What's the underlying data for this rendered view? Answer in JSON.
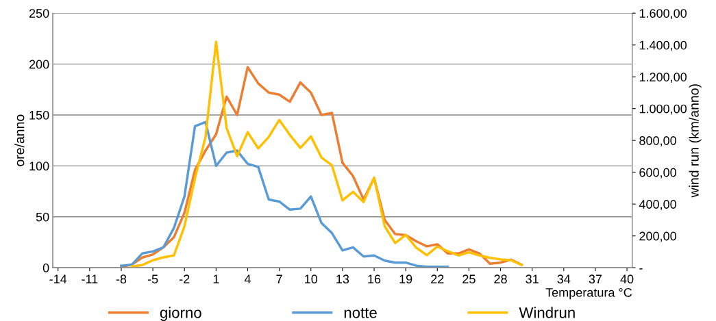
{
  "chart_data": {
    "type": "line",
    "xlabel": "Temperatura °C",
    "ylabel": "ore/anno",
    "y2label": "wind run (km/anno)",
    "xlim": [
      -14.5,
      40.5
    ],
    "xticks": [
      -14,
      -11,
      -8,
      -5,
      -2,
      1,
      4,
      7,
      10,
      13,
      16,
      19,
      22,
      25,
      28,
      31,
      34,
      37,
      40
    ],
    "ylim": [
      0,
      250
    ],
    "yticks": [
      0,
      50,
      100,
      150,
      200,
      250
    ],
    "y2lim": [
      0,
      1600
    ],
    "y2ticks": [
      {
        "value": 0,
        "label": "-"
      },
      {
        "value": 200,
        "label": "200,00"
      },
      {
        "value": 400,
        "label": "400,00"
      },
      {
        "value": 600,
        "label": "600,00"
      },
      {
        "value": 800,
        "label": "800,00"
      },
      {
        "value": 1000,
        "label": "1.000,00"
      },
      {
        "value": 1200,
        "label": "1.200,00"
      },
      {
        "value": 1400,
        "label": "1.400,00"
      },
      {
        "value": 1600,
        "label": "1.600,00"
      }
    ],
    "grid": "y",
    "legend": "bottom",
    "marker": "none",
    "line_style": "solid",
    "series": [
      {
        "name": "giorno",
        "color": "#ed7d31",
        "x": [
          -8,
          -7,
          -6,
          -5,
          -4,
          -3,
          -2,
          -1,
          0,
          1,
          2,
          3,
          4,
          5,
          6,
          7,
          8,
          9,
          10,
          11,
          12,
          13,
          14,
          15,
          16,
          17,
          18,
          19,
          20,
          21,
          22,
          23,
          24,
          25,
          26,
          27,
          28,
          29,
          30
        ],
        "values": [
          1,
          3,
          10,
          13,
          20,
          30,
          54,
          96,
          115,
          131,
          168,
          150,
          197,
          181,
          172,
          170,
          163,
          182,
          172,
          150,
          152,
          103,
          90,
          67,
          88,
          47,
          33,
          32,
          26,
          21,
          23,
          14,
          14,
          18,
          14,
          4,
          5,
          8,
          3
        ]
      },
      {
        "name": "notte",
        "color": "#5b9bd5",
        "x": [
          -8,
          -7,
          -6,
          -5,
          -4,
          -3,
          -2,
          -1,
          0,
          1,
          2,
          3,
          4,
          5,
          6,
          7,
          8,
          9,
          10,
          11,
          12,
          13,
          14,
          15,
          16,
          17,
          18,
          19,
          20,
          21,
          22,
          23
        ],
        "values": [
          2,
          3,
          14,
          16,
          20,
          39,
          70,
          139,
          143,
          100,
          113,
          115,
          102,
          99,
          67,
          65,
          57,
          58,
          70,
          44,
          34,
          17,
          20,
          11,
          12,
          7,
          5,
          5,
          2,
          1,
          1,
          1
        ]
      },
      {
        "name": "Windrun",
        "color": "#ffc000",
        "axis": "y2",
        "x": [
          -7,
          -6,
          -5,
          -4,
          -3,
          -2,
          -1,
          0,
          1,
          2,
          3,
          4,
          5,
          6,
          7,
          8,
          9,
          10,
          11,
          12,
          13,
          14,
          15,
          16,
          17,
          18,
          19,
          20,
          21,
          22,
          23,
          24,
          25,
          26,
          27,
          28,
          29,
          30
        ],
        "values": [
          8,
          17,
          47,
          65,
          77,
          260,
          563,
          822,
          1420,
          878,
          701,
          852,
          750,
          822,
          929,
          835,
          753,
          825,
          693,
          643,
          423,
          477,
          413,
          566,
          262,
          155,
          206,
          126,
          79,
          133,
          104,
          77,
          97,
          77,
          62,
          52,
          47,
          17
        ]
      }
    ]
  }
}
